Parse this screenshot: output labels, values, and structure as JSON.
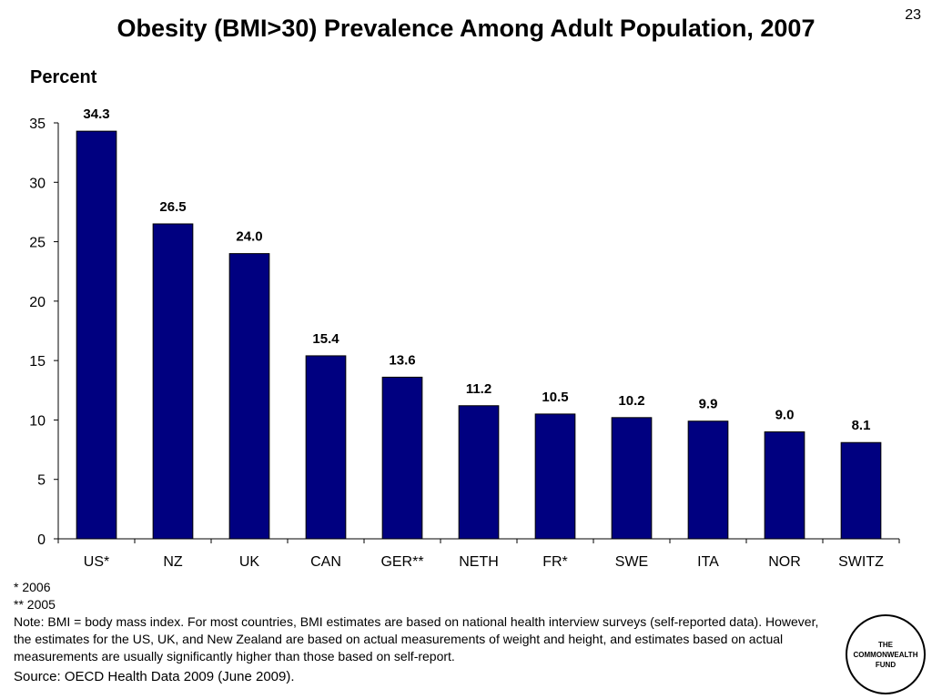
{
  "slide_number": "23",
  "title": "Obesity (BMI>30) Prevalence Among Adult Population, 2007",
  "footnotes": {
    "note1": "* 2006",
    "note2": "** 2005",
    "note3": "Note: BMI = body mass index. For most countries, BMI estimates are based on national health interview surveys (self-reported data). However, the estimates for the US, UK, and New Zealand are based on actual measurements of weight and height, and estimates based on actual measurements are usually significantly higher than those based on self-report.",
    "source": "Source: OECD Health Data 2009 (June 2009)."
  },
  "logo": {
    "line1": "THE",
    "line2": "COMMONWEALTH",
    "line3": "FUND"
  },
  "colors": {
    "bar": "#000080",
    "bar_outline": "#000000",
    "axis": "#000000"
  },
  "chart_data": {
    "type": "bar",
    "title": "Obesity (BMI>30) Prevalence Among Adult Population, 2007",
    "ylabel": "Percent",
    "xlabel": "",
    "categories": [
      "US*",
      "NZ",
      "UK",
      "CAN",
      "GER**",
      "NETH",
      "FR*",
      "SWE",
      "ITA",
      "NOR",
      "SWITZ"
    ],
    "values": [
      34.3,
      26.5,
      24.0,
      15.4,
      13.6,
      11.2,
      10.5,
      10.2,
      9.9,
      9.0,
      8.1
    ],
    "value_labels": [
      "34.3",
      "26.5",
      "24.0",
      "15.4",
      "13.6",
      "11.2",
      "10.5",
      "10.2",
      "9.9",
      "9.0",
      "8.1"
    ],
    "ylim": [
      0,
      35
    ],
    "yticks": [
      0,
      5,
      10,
      15,
      20,
      25,
      30,
      35
    ],
    "grid": false,
    "legend": "none"
  }
}
